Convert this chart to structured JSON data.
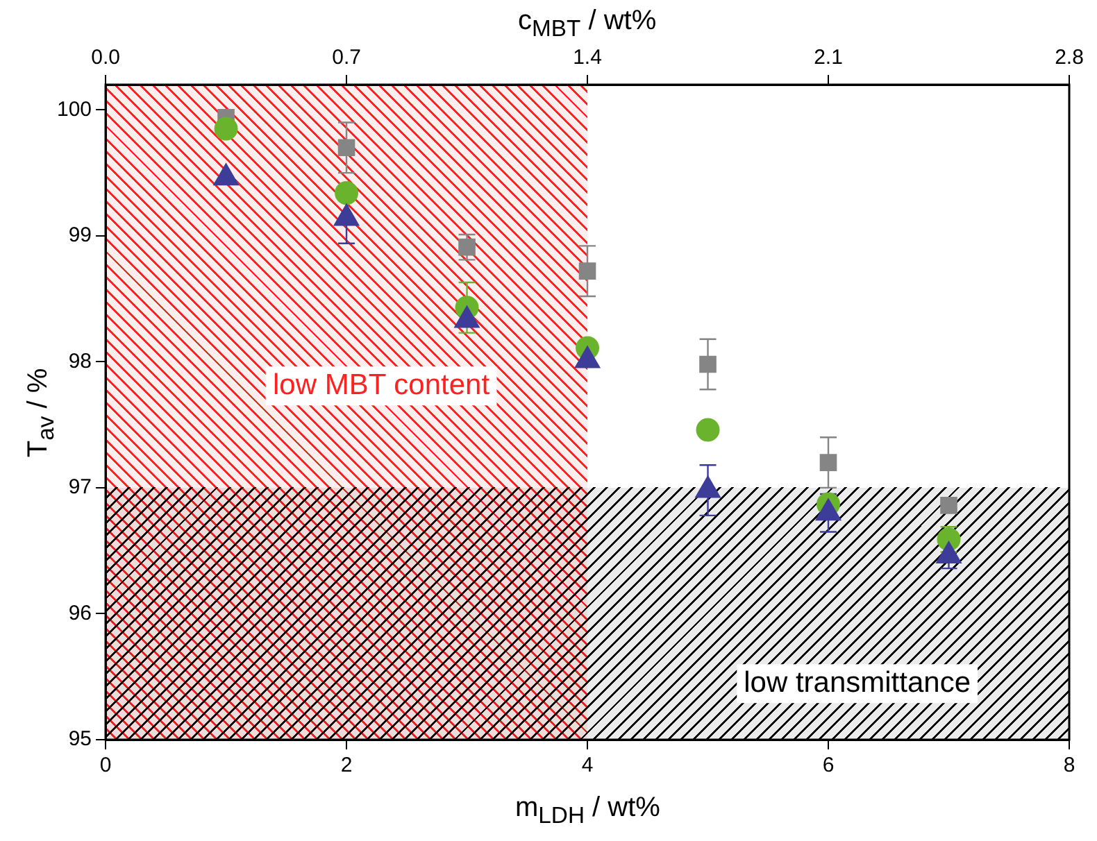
{
  "chart_data": {
    "type": "scatter",
    "xlabel": "m$_{LDH}$ / wt%",
    "ylabel": "T$_{av}$ / %",
    "x2label": "c$_{MBT}$ / wt%",
    "x": [
      1,
      2,
      3,
      4,
      5,
      6,
      7
    ],
    "xlim": [
      0,
      8
    ],
    "xticks": [
      0,
      2,
      4,
      6,
      8
    ],
    "x2lim": [
      0,
      2.8
    ],
    "x2ticks": [
      {
        "value": 0,
        "label": "0.0"
      },
      0.7,
      1.4,
      2.1,
      2.8
    ],
    "ylim": [
      95,
      100.2
    ],
    "yticks": [
      95,
      96,
      97,
      98,
      99,
      100
    ],
    "grid": false,
    "legend": false,
    "series": [
      {
        "color": "#858585",
        "marker": "square",
        "values": [
          99.94,
          99.7,
          98.91,
          98.72,
          97.98,
          97.2,
          96.86
        ],
        "errors": [
          null,
          0.2,
          0.1,
          0.2,
          0.2,
          0.2,
          null
        ]
      },
      {
        "color": "#6ab42d",
        "marker": "circle",
        "values": [
          99.85,
          99.34,
          98.43,
          98.11,
          97.46,
          96.87,
          96.59
        ],
        "errors": [
          null,
          null,
          0.2,
          null,
          null,
          null,
          0.1
        ]
      },
      {
        "color": "#3d3d99",
        "marker": "triangle",
        "values": [
          99.46,
          99.14,
          98.33,
          98.01,
          96.98,
          96.8,
          96.46
        ],
        "errors": [
          null,
          0.2,
          null,
          null,
          0.2,
          0.15,
          0.1
        ]
      }
    ],
    "bands": [
      {
        "axis": "x",
        "from": 0,
        "to": 4,
        "label": "low MBT content",
        "color": "#ff2020"
      },
      {
        "axis": "y",
        "from": 95,
        "to": 97,
        "label": "low transmittance",
        "color": "#000000"
      }
    ]
  }
}
